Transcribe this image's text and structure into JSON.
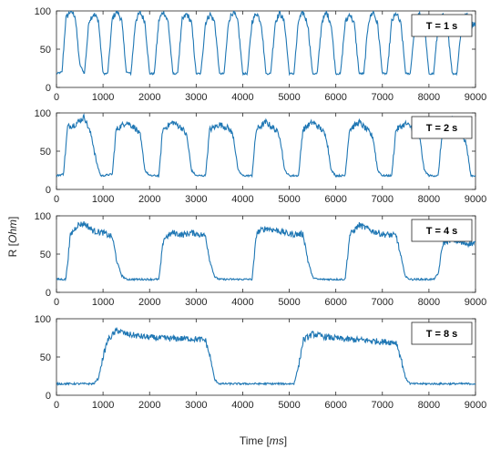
{
  "chart_data": {
    "type": "line",
    "xlabel_text": "Time",
    "xlabel_unit": "ms",
    "ylabel_text": "R",
    "ylabel_unit": "Ohm",
    "xlim": [
      0,
      9000
    ],
    "ylim": [
      0,
      100
    ],
    "xticks": [
      "0",
      "1000",
      "2000",
      "3000",
      "4000",
      "5000",
      "6000",
      "7000",
      "8000",
      "9000"
    ],
    "yticks": [
      "0",
      "50",
      "100"
    ],
    "line_color": "#1f77b4",
    "grid": false,
    "legend_placement": "top-right",
    "panels": [
      {
        "label": "T = 1 s",
        "period_ms": 1000,
        "low": 18,
        "high_start": 100,
        "high_end": 82,
        "waveform": [
          [
            0,
            18
          ],
          [
            120,
            20
          ],
          [
            200,
            90
          ],
          [
            300,
            100
          ],
          [
            400,
            94
          ],
          [
            500,
            30
          ],
          [
            600,
            18
          ],
          [
            700,
            88
          ],
          [
            800,
            96
          ],
          [
            900,
            88
          ],
          [
            1000,
            18
          ],
          [
            1100,
            18
          ],
          [
            1200,
            90
          ],
          [
            1300,
            100
          ],
          [
            1400,
            88
          ],
          [
            1500,
            20
          ],
          [
            1600,
            18
          ],
          [
            1700,
            88
          ],
          [
            1800,
            98
          ],
          [
            1900,
            86
          ],
          [
            2000,
            18
          ],
          [
            2100,
            18
          ],
          [
            2200,
            88
          ],
          [
            2300,
            100
          ],
          [
            2400,
            85
          ],
          [
            2500,
            18
          ],
          [
            2600,
            18
          ],
          [
            2700,
            88
          ],
          [
            2800,
            96
          ],
          [
            2900,
            85
          ],
          [
            3000,
            18
          ],
          [
            3100,
            18
          ],
          [
            3200,
            85
          ],
          [
            3300,
            96
          ],
          [
            3400,
            85
          ],
          [
            3500,
            18
          ],
          [
            3600,
            18
          ],
          [
            3700,
            88
          ],
          [
            3800,
            100
          ],
          [
            3900,
            84
          ],
          [
            4000,
            18
          ],
          [
            4100,
            18
          ],
          [
            4200,
            86
          ],
          [
            4300,
            98
          ],
          [
            4400,
            84
          ],
          [
            4500,
            18
          ],
          [
            4600,
            18
          ],
          [
            4700,
            86
          ],
          [
            4800,
            98
          ],
          [
            4900,
            84
          ],
          [
            5000,
            18
          ],
          [
            5100,
            18
          ],
          [
            5200,
            88
          ],
          [
            5300,
            98
          ],
          [
            5400,
            82
          ],
          [
            5500,
            18
          ],
          [
            5600,
            18
          ],
          [
            5700,
            86
          ],
          [
            5800,
            98
          ],
          [
            5900,
            83
          ],
          [
            6000,
            18
          ],
          [
            6100,
            18
          ],
          [
            6200,
            84
          ],
          [
            6300,
            97
          ],
          [
            6400,
            82
          ],
          [
            6500,
            18
          ],
          [
            6600,
            18
          ],
          [
            6700,
            86
          ],
          [
            6800,
            100
          ],
          [
            6900,
            82
          ],
          [
            7000,
            18
          ],
          [
            7100,
            18
          ],
          [
            7200,
            86
          ],
          [
            7300,
            97
          ],
          [
            7400,
            82
          ],
          [
            7500,
            18
          ],
          [
            7600,
            18
          ],
          [
            7700,
            84
          ],
          [
            7800,
            96
          ],
          [
            7900,
            82
          ],
          [
            8000,
            18
          ],
          [
            8100,
            18
          ],
          [
            8200,
            82
          ],
          [
            8300,
            94
          ],
          [
            8400,
            80
          ],
          [
            8500,
            18
          ],
          [
            8600,
            18
          ],
          [
            8700,
            82
          ],
          [
            8800,
            96
          ],
          [
            8900,
            82
          ],
          [
            9000,
            84
          ]
        ]
      },
      {
        "label": "T = 2 s",
        "period_ms": 2000,
        "low": 18,
        "high_start": 92,
        "high_end": 78,
        "waveform": [
          [
            0,
            18
          ],
          [
            150,
            20
          ],
          [
            240,
            82
          ],
          [
            400,
            85
          ],
          [
            600,
            95
          ],
          [
            760,
            68
          ],
          [
            860,
            35
          ],
          [
            950,
            18
          ],
          [
            1000,
            18
          ],
          [
            1200,
            20
          ],
          [
            1280,
            78
          ],
          [
            1500,
            88
          ],
          [
            1700,
            80
          ],
          [
            1800,
            70
          ],
          [
            1900,
            25
          ],
          [
            2000,
            18
          ],
          [
            2200,
            18
          ],
          [
            2280,
            78
          ],
          [
            2500,
            88
          ],
          [
            2700,
            80
          ],
          [
            2800,
            70
          ],
          [
            2900,
            25
          ],
          [
            3000,
            18
          ],
          [
            3200,
            18
          ],
          [
            3290,
            78
          ],
          [
            3500,
            85
          ],
          [
            3700,
            80
          ],
          [
            3800,
            70
          ],
          [
            3900,
            25
          ],
          [
            4000,
            18
          ],
          [
            4200,
            18
          ],
          [
            4290,
            78
          ],
          [
            4500,
            88
          ],
          [
            4700,
            78
          ],
          [
            4800,
            70
          ],
          [
            4900,
            25
          ],
          [
            5000,
            18
          ],
          [
            5200,
            18
          ],
          [
            5290,
            78
          ],
          [
            5500,
            88
          ],
          [
            5700,
            78
          ],
          [
            5800,
            68
          ],
          [
            5900,
            25
          ],
          [
            6000,
            18
          ],
          [
            6200,
            18
          ],
          [
            6290,
            78
          ],
          [
            6500,
            88
          ],
          [
            6700,
            76
          ],
          [
            6800,
            68
          ],
          [
            6900,
            25
          ],
          [
            7000,
            18
          ],
          [
            7200,
            18
          ],
          [
            7290,
            78
          ],
          [
            7500,
            86
          ],
          [
            7700,
            78
          ],
          [
            7800,
            68
          ],
          [
            7900,
            25
          ],
          [
            8000,
            18
          ],
          [
            8200,
            18
          ],
          [
            8290,
            78
          ],
          [
            8500,
            94
          ],
          [
            8700,
            72
          ],
          [
            8800,
            60
          ],
          [
            8900,
            18
          ],
          [
            9000,
            18
          ]
        ]
      },
      {
        "label": "T = 4 s",
        "period_ms": 4000,
        "low": 17,
        "high_start": 92,
        "high_end": 75,
        "waveform": [
          [
            0,
            17
          ],
          [
            200,
            17
          ],
          [
            300,
            75
          ],
          [
            450,
            88
          ],
          [
            600,
            90
          ],
          [
            800,
            80
          ],
          [
            1000,
            78
          ],
          [
            1200,
            72
          ],
          [
            1300,
            40
          ],
          [
            1400,
            22
          ],
          [
            1500,
            17
          ],
          [
            2200,
            17
          ],
          [
            2300,
            70
          ],
          [
            2500,
            78
          ],
          [
            2700,
            75
          ],
          [
            2900,
            78
          ],
          [
            3200,
            74
          ],
          [
            3300,
            40
          ],
          [
            3400,
            20
          ],
          [
            3500,
            17
          ],
          [
            4200,
            17
          ],
          [
            4300,
            78
          ],
          [
            4500,
            84
          ],
          [
            4800,
            80
          ],
          [
            5000,
            76
          ],
          [
            5300,
            76
          ],
          [
            5400,
            42
          ],
          [
            5500,
            20
          ],
          [
            5600,
            17
          ],
          [
            6200,
            17
          ],
          [
            6300,
            75
          ],
          [
            6500,
            88
          ],
          [
            6800,
            80
          ],
          [
            7000,
            76
          ],
          [
            7300,
            74
          ],
          [
            7400,
            45
          ],
          [
            7500,
            20
          ],
          [
            7600,
            17
          ],
          [
            8100,
            17
          ],
          [
            8200,
            24
          ],
          [
            8300,
            64
          ],
          [
            8500,
            70
          ],
          [
            8700,
            64
          ],
          [
            9000,
            64
          ]
        ]
      },
      {
        "label": "T = 8 s",
        "period_ms": 8000,
        "low": 15,
        "high_start": 90,
        "high_end": 70,
        "waveform": [
          [
            0,
            15
          ],
          [
            800,
            15
          ],
          [
            900,
            22
          ],
          [
            1000,
            50
          ],
          [
            1100,
            72
          ],
          [
            1300,
            85
          ],
          [
            1500,
            80
          ],
          [
            1800,
            77
          ],
          [
            2100,
            75
          ],
          [
            2500,
            74
          ],
          [
            2900,
            74
          ],
          [
            3200,
            72
          ],
          [
            3300,
            50
          ],
          [
            3400,
            20
          ],
          [
            3500,
            15
          ],
          [
            5100,
            15
          ],
          [
            5200,
            38
          ],
          [
            5300,
            72
          ],
          [
            5500,
            80
          ],
          [
            5800,
            76
          ],
          [
            6200,
            73
          ],
          [
            6600,
            72
          ],
          [
            7000,
            70
          ],
          [
            7300,
            69
          ],
          [
            7400,
            48
          ],
          [
            7500,
            22
          ],
          [
            7600,
            15
          ],
          [
            9000,
            15
          ]
        ]
      }
    ]
  }
}
